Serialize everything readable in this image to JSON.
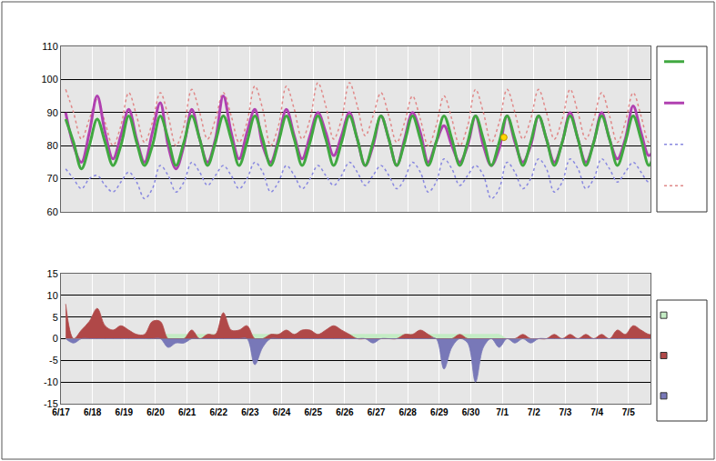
{
  "chart_data": [
    {
      "type": "line",
      "x": [
        0.15,
        0.4,
        0.65,
        0.9,
        1.15,
        1.4,
        1.65,
        1.9,
        2.15,
        2.4,
        2.65,
        2.9,
        3.15,
        3.4,
        3.65,
        3.9,
        4.15,
        4.4,
        4.65,
        4.9,
        5.15,
        5.4,
        5.65,
        5.9,
        6.15,
        6.4,
        6.65,
        6.9,
        7.15,
        7.4,
        7.65,
        7.9,
        8.15,
        8.4,
        8.65,
        8.9,
        9.15,
        9.4,
        9.65,
        9.9,
        10.15,
        10.4,
        10.65,
        10.9,
        11.15,
        11.4,
        11.65,
        11.9,
        12.15,
        12.4,
        12.65,
        12.9,
        13.15,
        13.4,
        13.65,
        13.9,
        14.15,
        14.4,
        14.65,
        14.9,
        15.15,
        15.4,
        15.65,
        15.9,
        16.15,
        16.4,
        16.65,
        16.9,
        17.15,
        17.4,
        17.65,
        17.9,
        18.15,
        18.4,
        18.65,
        18.9
      ],
      "series": [
        {
          "color": "#e08888",
          "line_style": "dotted",
          "values": [
            97,
            90,
            82,
            88,
            94,
            87,
            80,
            86,
            96,
            89,
            81,
            87,
            96,
            89,
            80,
            86,
            97,
            90,
            82,
            88,
            96,
            89,
            81,
            87,
            98,
            91,
            80,
            86,
            98,
            91,
            82,
            88,
            99,
            92,
            82,
            88,
            99,
            92,
            83,
            89,
            96,
            89,
            81,
            87,
            95,
            88,
            80,
            86,
            95,
            88,
            80,
            86,
            97,
            90,
            81,
            87,
            97,
            90,
            82,
            88,
            97,
            90,
            82,
            88,
            97,
            90,
            82,
            88,
            96,
            89,
            81,
            87,
            96,
            89,
            81,
            87
          ]
        },
        {
          "color": "#8888e0",
          "line_style": "dotted",
          "values": [
            73,
            70,
            67,
            70,
            71,
            68,
            66,
            69,
            72,
            69,
            64,
            67,
            74,
            71,
            66,
            69,
            75,
            72,
            68,
            71,
            74,
            71,
            67,
            70,
            75,
            72,
            66,
            69,
            74,
            71,
            67,
            70,
            74,
            71,
            68,
            71,
            75,
            72,
            68,
            71,
            74,
            71,
            67,
            70,
            75,
            72,
            66,
            69,
            76,
            73,
            68,
            71,
            74,
            71,
            64,
            67,
            75,
            72,
            67,
            70,
            76,
            73,
            66,
            69,
            76,
            73,
            67,
            70,
            76,
            73,
            69,
            72,
            75,
            72,
            69,
            72
          ]
        },
        {
          "color": "#b040b0",
          "line_style": "solid",
          "values": [
            90,
            80,
            75,
            84,
            95,
            84,
            76,
            83,
            91,
            82,
            75,
            84,
            93,
            80,
            73,
            80,
            91,
            82,
            75,
            82,
            95,
            84,
            76,
            84,
            91,
            80,
            75,
            82,
            91,
            83,
            76,
            83,
            90,
            84,
            77,
            83,
            90,
            82,
            74,
            80,
            89,
            82,
            74,
            82,
            90,
            84,
            75,
            81,
            86,
            80,
            75,
            80,
            89,
            80,
            74,
            79,
            89,
            81,
            75,
            80,
            89,
            82,
            75,
            81,
            90,
            82,
            75,
            81,
            90,
            82,
            76,
            82,
            92,
            84,
            77,
            82
          ]
        },
        {
          "color": "#40a840",
          "line_style": "solid",
          "values": [
            88,
            81,
            73,
            80,
            88,
            81,
            74,
            80,
            89,
            81,
            74,
            80,
            89,
            82,
            74,
            81,
            89,
            82,
            74,
            81,
            89,
            82,
            74,
            81,
            89,
            82,
            74,
            81,
            89,
            82,
            74,
            81,
            89,
            82,
            74,
            81,
            89,
            82,
            74,
            81,
            89,
            82,
            74,
            81,
            89,
            82,
            74,
            81,
            89,
            82,
            74,
            81,
            89,
            82,
            74,
            81,
            89,
            82,
            74,
            81,
            89,
            82,
            74,
            81,
            89,
            82,
            74,
            81,
            89,
            82,
            74,
            81,
            89,
            82,
            74,
            81
          ]
        }
      ],
      "points": [
        {
          "x": 14.05,
          "y": 82.5,
          "color": "#ffd700",
          "marker": "circle"
        }
      ],
      "xlim": [
        0,
        18.7
      ],
      "xticks": [
        {
          "value": 0,
          "label": "6/17"
        },
        {
          "value": 1,
          "label": "6/18"
        },
        {
          "value": 2,
          "label": "6/19"
        },
        {
          "value": 3,
          "label": "6/20"
        },
        {
          "value": 4,
          "label": "6/21"
        },
        {
          "value": 5,
          "label": "6/22"
        },
        {
          "value": 6,
          "label": "6/23"
        },
        {
          "value": 7,
          "label": "6/24"
        },
        {
          "value": 8,
          "label": "6/25"
        },
        {
          "value": 9,
          "label": "6/26"
        },
        {
          "value": 10,
          "label": "6/27"
        },
        {
          "value": 11,
          "label": "6/28"
        },
        {
          "value": 12,
          "label": "6/29"
        },
        {
          "value": 13,
          "label": "6/30"
        },
        {
          "value": 14,
          "label": "7/1"
        },
        {
          "value": 15,
          "label": "7/2"
        },
        {
          "value": 16,
          "label": "7/3"
        },
        {
          "value": 17,
          "label": "7/4"
        },
        {
          "value": 18,
          "label": "7/5"
        }
      ],
      "ylim": [
        60,
        110
      ],
      "yticks": [
        60,
        70,
        80,
        90,
        100,
        110
      ],
      "grid": true,
      "tick_labels": "y"
    },
    {
      "type": "area",
      "x": [
        0.15,
        0.4,
        0.65,
        0.9,
        1.15,
        1.4,
        1.65,
        1.9,
        2.15,
        2.4,
        2.65,
        2.9,
        3.15,
        3.4,
        3.65,
        3.9,
        4.15,
        4.4,
        4.65,
        4.9,
        5.15,
        5.4,
        5.65,
        5.9,
        6.15,
        6.4,
        6.65,
        6.9,
        7.15,
        7.4,
        7.65,
        7.9,
        8.15,
        8.4,
        8.65,
        8.9,
        9.15,
        9.4,
        9.65,
        9.9,
        10.15,
        10.4,
        10.65,
        10.9,
        11.15,
        11.4,
        11.65,
        11.9,
        12.15,
        12.4,
        12.65,
        12.9,
        13.15,
        13.4,
        13.65,
        13.9,
        14.15,
        14.4,
        14.65,
        14.9,
        15.15,
        15.4,
        15.65,
        15.9,
        16.15,
        16.4,
        16.65,
        16.9,
        17.15,
        17.4,
        17.65,
        17.9,
        18.15,
        18.4,
        18.65,
        18.9
      ],
      "series": [
        {
          "color": "#c4ecc4",
          "values": [
            0,
            0,
            0,
            0,
            0,
            0,
            0,
            0,
            0,
            0,
            0,
            0,
            1,
            1,
            1,
            1,
            1,
            1,
            1,
            1,
            1,
            1,
            1,
            1,
            1,
            1,
            1,
            1,
            1,
            1,
            1,
            1,
            1,
            1,
            1,
            1,
            1,
            1,
            1,
            1,
            1,
            1,
            1,
            1,
            1,
            1,
            1,
            1,
            1,
            1,
            1,
            1,
            1,
            1,
            1,
            1,
            0,
            0,
            0,
            0,
            0,
            0,
            0,
            0,
            0,
            0,
            0,
            0,
            0,
            0,
            0,
            0,
            0,
            0,
            0,
            0
          ]
        },
        {
          "color": "#b04848",
          "values": [
            8,
            0,
            2,
            4,
            7,
            3,
            2,
            3,
            2,
            1,
            1,
            4,
            4,
            0,
            0,
            0,
            2,
            0,
            1,
            1,
            6,
            2,
            2,
            3,
            0,
            0,
            1,
            1,
            2,
            1,
            2,
            2,
            1,
            2,
            3,
            2,
            1,
            0,
            0,
            0,
            0,
            0,
            0,
            1,
            1,
            2,
            1,
            0,
            0,
            0,
            1,
            0,
            0,
            0,
            0,
            0,
            0,
            0,
            1,
            0,
            0,
            0,
            1,
            0,
            1,
            0,
            1,
            0,
            1,
            0,
            2,
            1,
            3,
            2,
            1,
            1
          ]
        },
        {
          "color": "#7878b8",
          "values": [
            0,
            -1,
            0,
            0,
            0,
            0,
            0,
            0,
            0,
            0,
            0,
            0,
            0,
            -2,
            -1,
            -1,
            0,
            0,
            0,
            0,
            0,
            0,
            0,
            0,
            -6,
            -2,
            0,
            0,
            0,
            0,
            0,
            0,
            0,
            0,
            0,
            0,
            0,
            0,
            0,
            -1,
            0,
            0,
            0,
            0,
            0,
            0,
            0,
            0,
            -7,
            -2,
            0,
            -1,
            -10,
            -2,
            0,
            -2,
            0,
            -1,
            0,
            -1,
            0,
            0,
            0,
            0,
            0,
            0,
            0,
            0,
            0,
            0,
            0,
            0,
            0,
            0,
            0,
            0
          ]
        }
      ],
      "xlim": [
        0,
        18.7
      ],
      "xticks": [
        {
          "value": 0,
          "label": "6/17"
        },
        {
          "value": 1,
          "label": "6/18"
        },
        {
          "value": 2,
          "label": "6/19"
        },
        {
          "value": 3,
          "label": "6/20"
        },
        {
          "value": 4,
          "label": "6/21"
        },
        {
          "value": 5,
          "label": "6/22"
        },
        {
          "value": 6,
          "label": "6/23"
        },
        {
          "value": 7,
          "label": "6/24"
        },
        {
          "value": 8,
          "label": "6/25"
        },
        {
          "value": 9,
          "label": "6/26"
        },
        {
          "value": 10,
          "label": "6/27"
        },
        {
          "value": 11,
          "label": "6/28"
        },
        {
          "value": 12,
          "label": "6/29"
        },
        {
          "value": 13,
          "label": "6/30"
        },
        {
          "value": 14,
          "label": "7/1"
        },
        {
          "value": 15,
          "label": "7/2"
        },
        {
          "value": 16,
          "label": "7/3"
        },
        {
          "value": 17,
          "label": "7/4"
        },
        {
          "value": 18,
          "label": "7/5"
        }
      ],
      "ylim": [
        -15,
        15
      ],
      "yticks": [
        -15,
        -10,
        -5,
        0,
        5,
        10,
        15
      ],
      "grid": true
    }
  ]
}
